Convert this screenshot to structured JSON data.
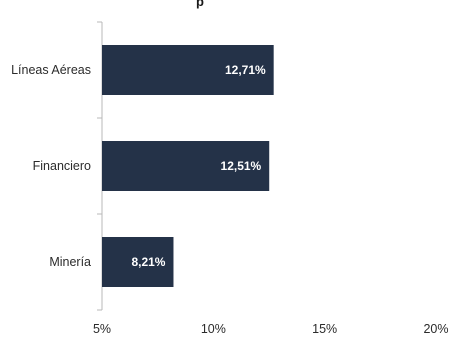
{
  "chart_data": {
    "type": "bar",
    "orientation": "horizontal",
    "title": "p",
    "categories": [
      "Líneas Aéreas",
      "Financiero",
      "Minería"
    ],
    "values": [
      12.71,
      12.51,
      8.21
    ],
    "value_labels": [
      "12,71%",
      "12,51%",
      "8,21%"
    ],
    "xlim": [
      5,
      20
    ],
    "xticks": [
      5,
      10,
      15,
      20
    ],
    "xtick_labels": [
      "5%",
      "10%",
      "15%",
      "20%"
    ],
    "xlabel": "",
    "ylabel": "",
    "grid": false,
    "bar_color": "#243248"
  }
}
